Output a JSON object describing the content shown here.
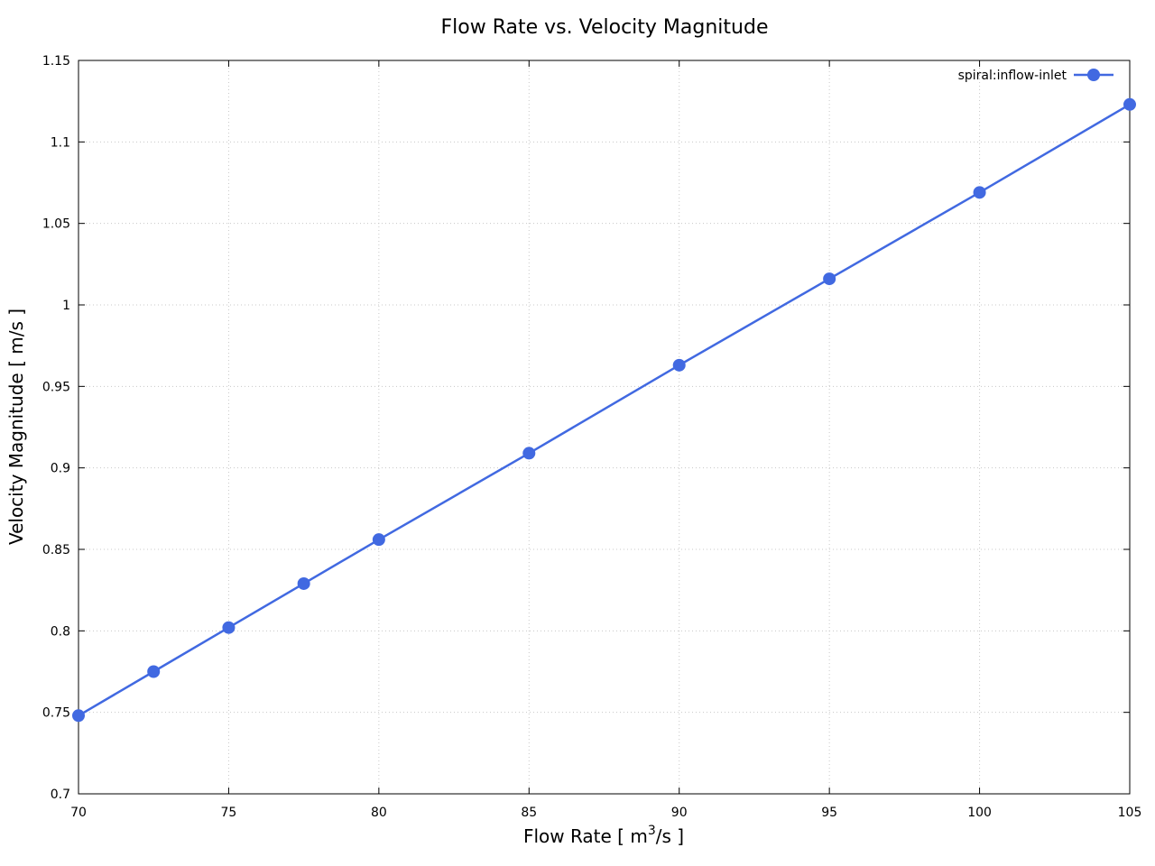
{
  "chart_data": {
    "type": "line",
    "title": "Flow Rate vs. Velocity Magnitude",
    "xlabel": {
      "prefix": "Flow Rate [ m",
      "superscript": "3",
      "suffix": "/s ]"
    },
    "ylabel": "Velocity Magnitude [ m/s ]",
    "xlim": [
      70,
      105
    ],
    "ylim": [
      0.7,
      1.15
    ],
    "xticks": [
      70,
      75,
      80,
      85,
      90,
      95,
      100,
      105
    ],
    "xtick_labels": [
      "70",
      "75",
      "80",
      "85",
      "90",
      "95",
      "100",
      "105"
    ],
    "yticks": [
      0.7,
      0.75,
      0.8,
      0.85,
      0.9,
      0.95,
      1.0,
      1.05,
      1.1,
      1.15
    ],
    "ytick_labels": [
      "0.7",
      "0.75",
      "0.8",
      "0.85",
      "0.9",
      "0.95",
      "1",
      "1.05",
      "1.1",
      "1.15"
    ],
    "grid": true,
    "legend_position": "top-right",
    "series": [
      {
        "name": "spiral:inflow-inlet",
        "color": "#4169e1",
        "x": [
          70,
          72.5,
          75,
          77.5,
          80,
          85,
          90,
          95,
          100,
          105
        ],
        "y": [
          0.748,
          0.775,
          0.802,
          0.829,
          0.856,
          0.909,
          0.963,
          1.016,
          1.069,
          1.123
        ]
      }
    ]
  }
}
